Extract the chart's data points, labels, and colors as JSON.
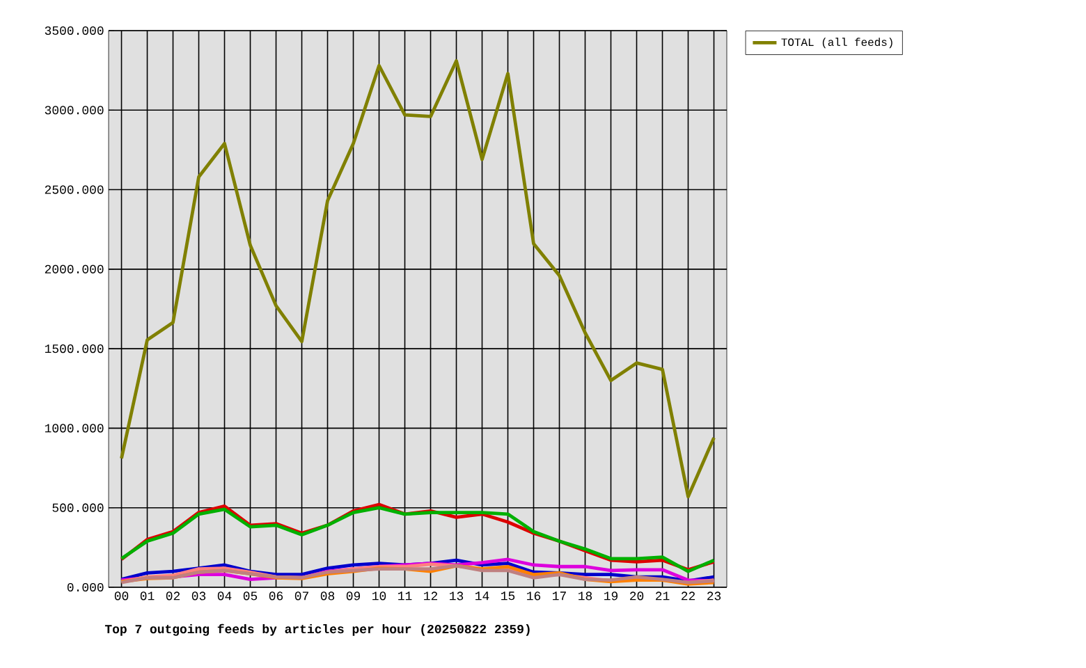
{
  "chart_data": {
    "type": "line",
    "title": "Top 7 outgoing feeds by articles per hour (20250822 2359)",
    "categories": [
      "00",
      "01",
      "02",
      "03",
      "04",
      "05",
      "06",
      "07",
      "08",
      "09",
      "10",
      "11",
      "12",
      "13",
      "14",
      "15",
      "16",
      "17",
      "18",
      "19",
      "20",
      "21",
      "22",
      "23"
    ],
    "ylim": [
      0,
      3500
    ],
    "yticks": [
      {
        "value": 0,
        "label": "0.000"
      },
      {
        "value": 500,
        "label": "500.000"
      },
      {
        "value": 1000,
        "label": "1000.000"
      },
      {
        "value": 1500,
        "label": "1500.000"
      },
      {
        "value": 2000,
        "label": "2000.000"
      },
      {
        "value": 2500,
        "label": "2500.000"
      },
      {
        "value": 3000,
        "label": "3000.000"
      },
      {
        "value": 3500,
        "label": "3500.000"
      }
    ],
    "grid": true,
    "legend": "top right",
    "line_style": "solid",
    "series": [
      {
        "color": "#dd0000",
        "values": [
          175,
          300,
          350,
          470,
          510,
          390,
          400,
          340,
          390,
          480,
          520,
          460,
          480,
          440,
          460,
          410,
          340,
          290,
          230,
          170,
          160,
          170,
          110,
          160
        ]
      },
      {
        "color": "#00b000",
        "values": [
          180,
          290,
          340,
          460,
          490,
          380,
          390,
          330,
          390,
          470,
          500,
          460,
          470,
          470,
          470,
          460,
          350,
          290,
          240,
          180,
          180,
          190,
          100,
          170
        ]
      },
      {
        "color": "#0000cc",
        "values": [
          50,
          90,
          100,
          120,
          140,
          100,
          80,
          80,
          120,
          140,
          150,
          140,
          150,
          170,
          140,
          150,
          95,
          90,
          80,
          80,
          65,
          65,
          40,
          65
        ]
      },
      {
        "color": "#dd00dd",
        "values": [
          45,
          60,
          65,
          80,
          80,
          50,
          60,
          60,
          100,
          115,
          130,
          140,
          150,
          140,
          155,
          175,
          140,
          130,
          130,
          105,
          110,
          110,
          45,
          40
        ]
      },
      {
        "color": "#ff8080",
        "values": [
          35,
          65,
          75,
          115,
          120,
          95,
          65,
          60,
          95,
          115,
          130,
          130,
          145,
          135,
          115,
          120,
          75,
          80,
          60,
          40,
          60,
          45,
          30,
          45
        ]
      },
      {
        "color": "#ff8000",
        "values": [
          35,
          55,
          60,
          95,
          105,
          85,
          60,
          55,
          85,
          100,
          120,
          115,
          100,
          135,
          115,
          130,
          80,
          90,
          50,
          35,
          45,
          45,
          20,
          30
        ]
      },
      {
        "color": "#c08080",
        "values": [
          30,
          60,
          60,
          95,
          105,
          85,
          65,
          60,
          95,
          105,
          115,
          115,
          115,
          135,
          105,
          105,
          60,
          80,
          50,
          45,
          65,
          50,
          30,
          40
        ]
      },
      {
        "name": "TOTAL (all feeds)",
        "color": "#808000",
        "values": [
          810,
          1555,
          1665,
          2580,
          2790,
          2150,
          1770,
          1545,
          2430,
          2790,
          3280,
          2970,
          2960,
          3310,
          2690,
          3230,
          2160,
          1960,
          1600,
          1300,
          1410,
          1370,
          570,
          940
        ]
      }
    ]
  }
}
